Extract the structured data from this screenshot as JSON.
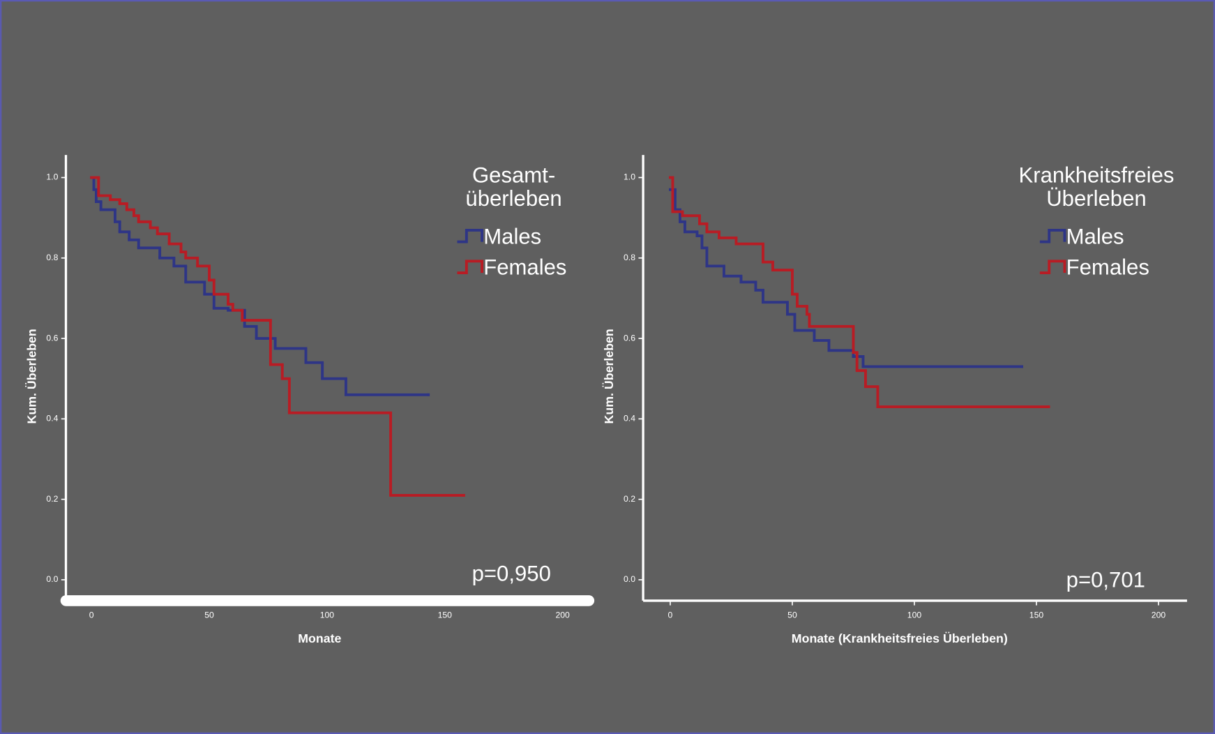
{
  "chart_data": [
    {
      "type": "step",
      "legend_title": [
        "Gesamt-",
        "überleben"
      ],
      "annotation": "p=0,950",
      "x_label": "Monate",
      "y_label": "Kum. Überleben",
      "xlim": [
        -12.5,
        212.8
      ],
      "ylim": [
        -0.052,
        1.056
      ],
      "xticks": [
        0,
        50,
        100,
        150,
        200
      ],
      "yticks": [
        {
          "value": 0,
          "label": "0.0"
        },
        {
          "value": 0.2,
          "label": "0.2"
        },
        {
          "value": 0.4,
          "label": "0.4"
        },
        {
          "value": 0.6,
          "label": "0.6"
        },
        {
          "value": 0.8,
          "label": "0.8"
        },
        {
          "value": 1,
          "label": "1.0"
        }
      ],
      "series": [
        {
          "name": "Males",
          "color": "#2e3586",
          "x": [
            0,
            1,
            2,
            4,
            10,
            12,
            16,
            20,
            29,
            35,
            40,
            48,
            52,
            58,
            65,
            70,
            78,
            91,
            98,
            108,
            143
          ],
          "values": [
            1.0,
            0.97,
            0.94,
            0.92,
            0.89,
            0.865,
            0.845,
            0.825,
            0.8,
            0.78,
            0.74,
            0.71,
            0.675,
            0.67,
            0.63,
            0.6,
            0.575,
            0.54,
            0.5,
            0.46,
            0.46
          ]
        },
        {
          "name": "Females",
          "color": "#b81c24",
          "x": [
            0,
            3,
            8,
            12,
            15,
            18,
            20,
            25,
            28,
            33,
            38,
            40,
            45,
            50,
            52,
            58,
            60,
            64,
            76,
            81,
            84,
            127,
            158
          ],
          "values": [
            1.0,
            0.955,
            0.945,
            0.935,
            0.92,
            0.905,
            0.89,
            0.875,
            0.86,
            0.835,
            0.815,
            0.8,
            0.78,
            0.745,
            0.71,
            0.685,
            0.67,
            0.645,
            0.535,
            0.5,
            0.415,
            0.21,
            0.21
          ]
        }
      ]
    },
    {
      "type": "step",
      "legend_title": [
        "Krankheitsfreies",
        "Überleben"
      ],
      "annotation": "p=0,701",
      "x_label": "Monate (Krankheitsfreies Überleben)",
      "y_label": "Kum. Überleben",
      "xlim": [
        -11.1,
        211.7
      ],
      "ylim": [
        -0.052,
        1.056
      ],
      "xticks": [
        0,
        50,
        100,
        150,
        200
      ],
      "yticks": [
        {
          "value": 0,
          "label": "0.0"
        },
        {
          "value": 0.2,
          "label": "0.2"
        },
        {
          "value": 0.4,
          "label": "0.4"
        },
        {
          "value": 0.6,
          "label": "0.6"
        },
        {
          "value": 0.8,
          "label": "0.8"
        },
        {
          "value": 1,
          "label": "1.0"
        }
      ],
      "series": [
        {
          "name": "Males",
          "color": "#2e3586",
          "x": [
            0,
            2,
            4,
            6,
            11,
            13,
            15,
            22,
            29,
            35,
            38,
            48,
            51,
            59,
            65,
            75,
            79,
            144
          ],
          "values": [
            0.97,
            0.92,
            0.89,
            0.865,
            0.855,
            0.825,
            0.78,
            0.755,
            0.74,
            0.72,
            0.69,
            0.66,
            0.62,
            0.595,
            0.57,
            0.555,
            0.53,
            0.53
          ]
        },
        {
          "name": "Females",
          "color": "#b81c24",
          "x": [
            0,
            1,
            5,
            12,
            15,
            20,
            27,
            38,
            42,
            50,
            52,
            56,
            57,
            75,
            76.5,
            80,
            85,
            155
          ],
          "values": [
            1.0,
            0.915,
            0.905,
            0.885,
            0.865,
            0.85,
            0.835,
            0.79,
            0.77,
            0.71,
            0.68,
            0.66,
            0.63,
            0.565,
            0.52,
            0.48,
            0.43,
            0.43
          ]
        }
      ]
    }
  ]
}
